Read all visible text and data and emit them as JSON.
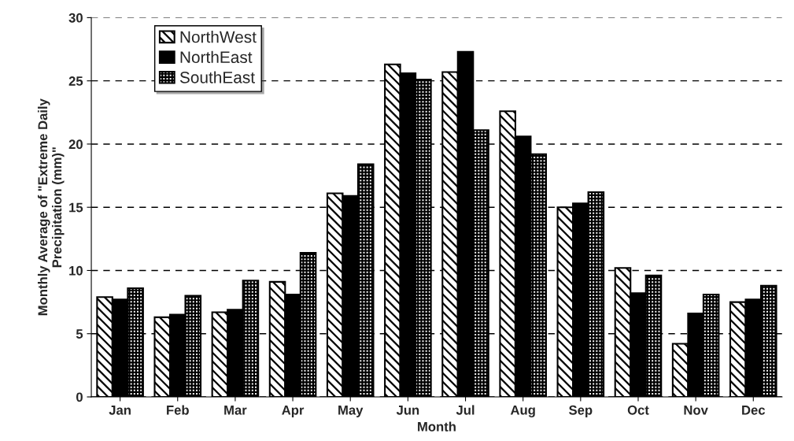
{
  "chart_data": {
    "type": "bar",
    "xlabel": "Month",
    "ylabel": "Monthly Average of \"Extreme Daily\nPrecipitation (mm)\"",
    "categories": [
      "Jan",
      "Feb",
      "Mar",
      "Apr",
      "May",
      "Jun",
      "Jul",
      "Aug",
      "Sep",
      "Oct",
      "Nov",
      "Dec"
    ],
    "series": [
      {
        "name": "NorthWest",
        "color": "#000000",
        "values": [
          7.9,
          6.3,
          6.7,
          9.1,
          16.1,
          26.3,
          25.7,
          22.6,
          15.0,
          10.2,
          4.2,
          7.5
        ]
      },
      {
        "name": "NorthEast",
        "color": "#000000",
        "values": [
          7.7,
          6.5,
          6.9,
          8.1,
          15.9,
          25.6,
          27.3,
          20.6,
          15.3,
          8.2,
          6.6,
          7.7
        ]
      },
      {
        "name": "SouthEast",
        "color": "#000000",
        "values": [
          8.6,
          8.0,
          9.2,
          11.4,
          18.4,
          25.1,
          21.1,
          19.2,
          16.2,
          9.6,
          8.1,
          8.8
        ]
      }
    ],
    "ylim": [
      0,
      30
    ],
    "yticks": [
      0,
      5,
      10,
      15,
      20,
      25,
      30
    ],
    "grid": "y",
    "legend": "top left"
  }
}
